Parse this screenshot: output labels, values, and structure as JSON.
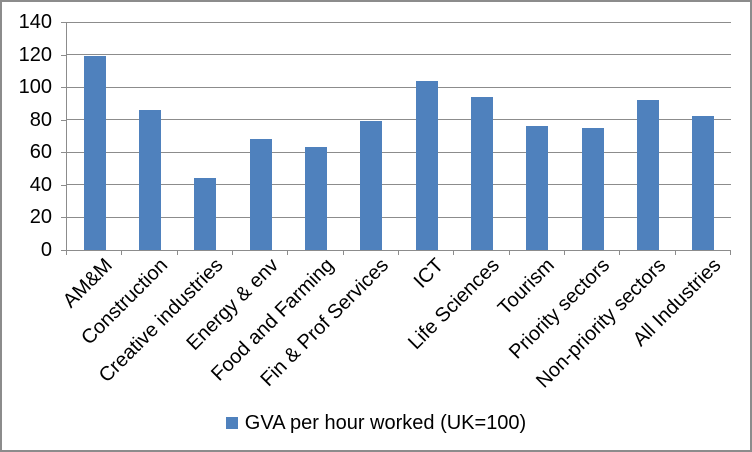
{
  "chart_data": {
    "type": "bar",
    "title": "",
    "categories": [
      "AM&M",
      "Construction",
      "Creative industries",
      "Energy & env",
      "Food and Farming",
      "Fin & Prof Services",
      "ICT",
      "Life Sciences",
      "Tourism",
      "Priority sectors",
      "Non-priority sectors",
      "All Industries"
    ],
    "series": [
      {
        "name": "GVA per hour worked (UK=100)",
        "values": [
          119,
          86,
          44,
          68,
          63,
          79,
          104,
          94,
          76,
          75,
          92,
          82
        ]
      }
    ],
    "ylim": [
      0,
      140
    ],
    "yticks": [
      0,
      20,
      40,
      60,
      80,
      100,
      120,
      140
    ],
    "grid": true,
    "legend_position": "bottom",
    "bar_color": "#4F81BD",
    "gridline_color": "#8C8C8C",
    "axis_color": "#8C8C8C",
    "text_color": "#000000",
    "x_label_rotation_deg": -45
  },
  "legend": {
    "label": "GVA per hour worked (UK=100)",
    "swatch_color": "#4F81BD"
  }
}
